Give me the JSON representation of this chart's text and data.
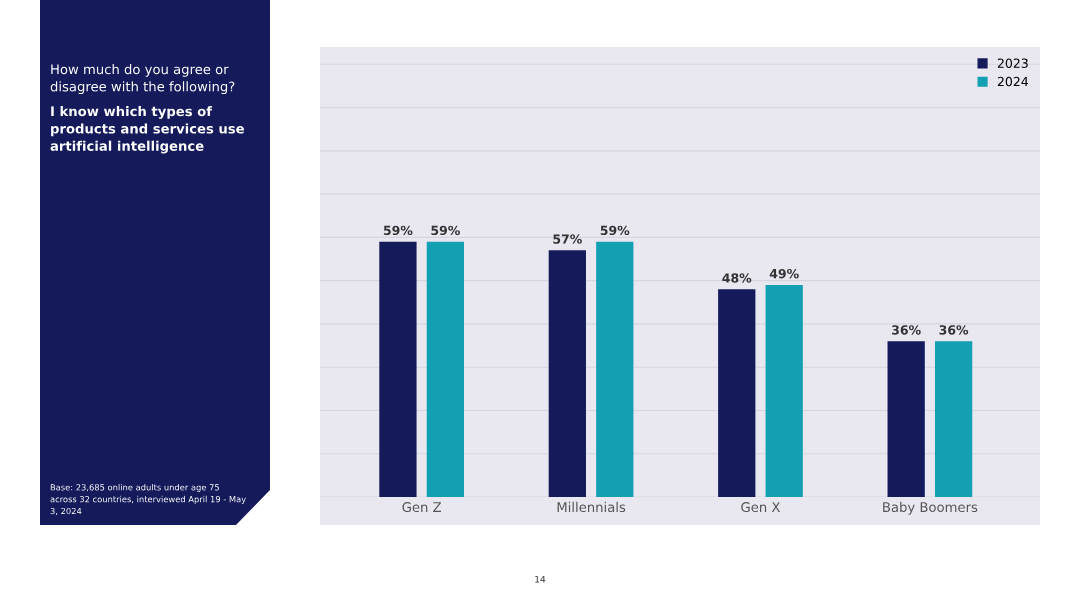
{
  "chart_data": {
    "type": "bar",
    "title": "How much do you agree or disagree with the following?",
    "subtitle": "I know which types of products and services use artificial intelligence",
    "categories": [
      "Gen Z",
      "Millennials",
      "Gen X",
      "Baby Boomers"
    ],
    "series": [
      {
        "name": "2023",
        "color": "#141a5a",
        "values": [
          59,
          57,
          48,
          36
        ],
        "value_labels": [
          "59%",
          "57%",
          "48%",
          "36%"
        ]
      },
      {
        "name": "2024",
        "color": "#13a0b2",
        "values": [
          59,
          59,
          49,
          36
        ],
        "value_labels": [
          "59%",
          "59%",
          "49%",
          "36%"
        ]
      }
    ],
    "ylim": [
      0,
      104
    ],
    "yticks": [
      {
        "value": 0,
        "label": null
      },
      {
        "value": 10,
        "label": null
      },
      {
        "value": 20,
        "label": null
      },
      {
        "value": 30,
        "label": null
      },
      {
        "value": 40,
        "label": null
      },
      {
        "value": 50,
        "label": null
      },
      {
        "value": 60,
        "label": null
      },
      {
        "value": 70,
        "label": null
      },
      {
        "value": 80,
        "label": null
      },
      {
        "value": 90,
        "label": null
      },
      {
        "value": 100,
        "label": null
      }
    ],
    "grid": "y",
    "legend": "top right",
    "annotations": [
      "Base: 23,685 online adults under age 75 across 32 countries, interviewed April 19 - May 3, 2024",
      "14"
    ]
  }
}
